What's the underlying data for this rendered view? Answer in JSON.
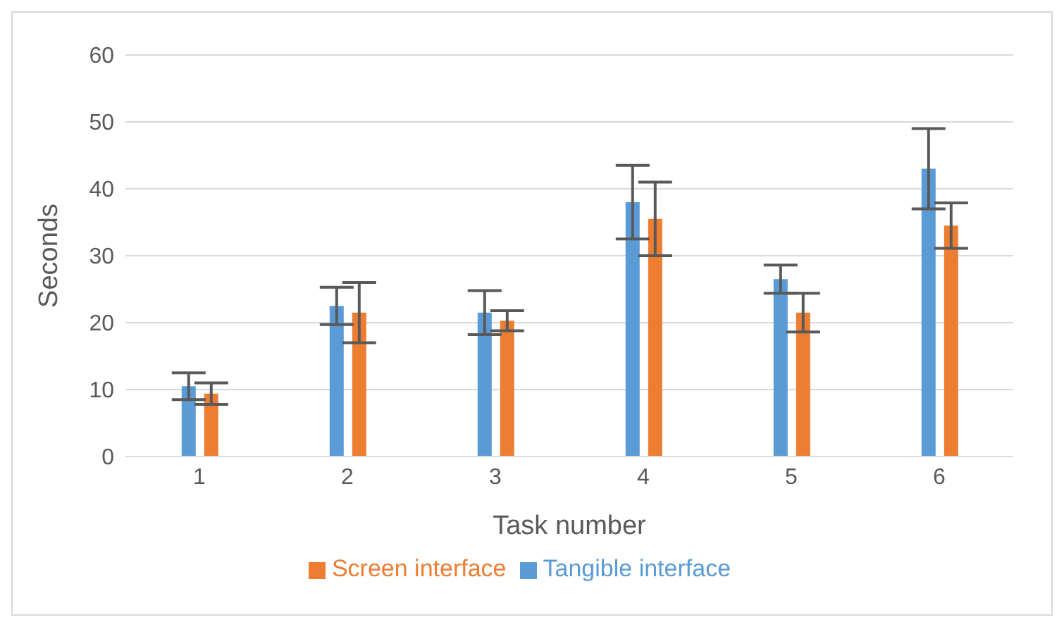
{
  "chart_data": {
    "type": "bar",
    "xlabel": "Task number",
    "ylabel": "Seconds",
    "categories": [
      "1",
      "2",
      "3",
      "4",
      "5",
      "6"
    ],
    "series": [
      {
        "name": "Tangible interface",
        "color": "#5b9bd5",
        "values": [
          10.5,
          22.5,
          21.5,
          38,
          26.5,
          43
        ],
        "errors": [
          2,
          2.8,
          3.3,
          5.5,
          2.1,
          6
        ]
      },
      {
        "name": "Screen interface",
        "color": "#ed7d31",
        "values": [
          9.4,
          21.5,
          20.3,
          35.5,
          21.5,
          34.5
        ],
        "errors": [
          1.6,
          4.5,
          1.5,
          5.5,
          2.9,
          3.4
        ]
      }
    ],
    "ylim": [
      0,
      60
    ],
    "yticks": [
      0,
      10,
      20,
      30,
      40,
      50,
      60
    ],
    "grid": "y",
    "legend": "bottom"
  }
}
